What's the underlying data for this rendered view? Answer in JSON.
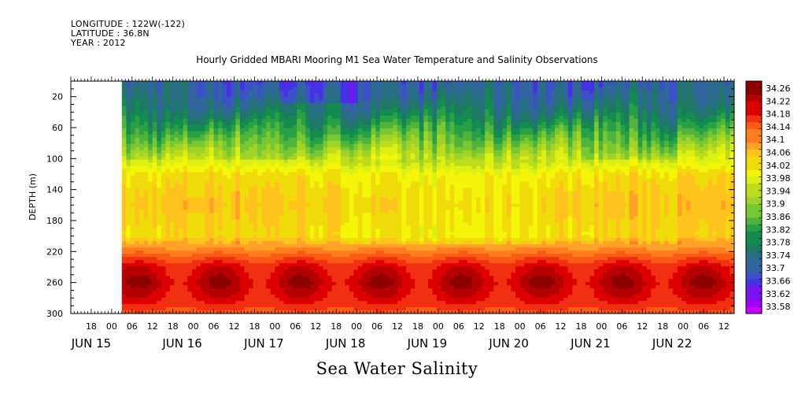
{
  "header": {
    "longitude": "LONGITUDE : 122W(-122)",
    "latitude": "LATITUDE : 36.8N",
    "year": "YEAR : 2012"
  },
  "chart_data": {
    "type": "heatmap",
    "title": "Hourly Gridded MBARI Mooring M1 Sea Water Temperature and Salinity Observations",
    "subtitle": "Sea Water Salinity",
    "ylabel": "DEPTH (m)",
    "xlabel": "",
    "x_range": [
      "2012-06-14 12:00",
      "2012-06-22 15:00"
    ],
    "data_start": "2012-06-15 03:00",
    "y_range": [
      0,
      300
    ],
    "y_direction": "down",
    "y_ticks": [
      20,
      60,
      100,
      140,
      180,
      220,
      260,
      300
    ],
    "x_hour_ticks": [
      "18",
      "00",
      "06",
      "12",
      "18",
      "00",
      "06",
      "12",
      "18",
      "00",
      "06",
      "12",
      "18",
      "00",
      "06",
      "12",
      "18",
      "00",
      "06",
      "12",
      "18",
      "00",
      "06",
      "12",
      "18",
      "00",
      "06",
      "12",
      "18",
      "00",
      "06",
      "12"
    ],
    "x_day_labels": [
      "JUN 15",
      "JUN 16",
      "JUN 17",
      "JUN 18",
      "JUN 19",
      "JUN 20",
      "JUN 21",
      "JUN 22"
    ],
    "colorbar": {
      "levels": [
        "34.26",
        "34.22",
        "34.18",
        "34.14",
        "34.1",
        "34.06",
        "34.02",
        "33.98",
        "33.94",
        "33.9",
        "33.86",
        "33.82",
        "33.78",
        "33.74",
        "33.7",
        "33.66",
        "33.62",
        "33.58"
      ],
      "colors": [
        "#8c0000",
        "#b40000",
        "#dc0000",
        "#f03010",
        "#fa5a14",
        "#ff7d1e",
        "#ffa028",
        "#ffc31e",
        "#f0dc0a",
        "#f5f50a",
        "#dcf014",
        "#bedc1e",
        "#a0d228",
        "#78c832",
        "#50b43c",
        "#28a046",
        "#148c50",
        "#1e7864",
        "#286e82",
        "#3264a0",
        "#3c50c8",
        "#4632e6",
        "#7814f0",
        "#a000fa",
        "#c800ff"
      ],
      "cells": 34
    },
    "profile": [
      {
        "depth": 0,
        "value": 33.72
      },
      {
        "depth": 20,
        "value": 33.74
      },
      {
        "depth": 40,
        "value": 33.78
      },
      {
        "depth": 60,
        "value": 33.84
      },
      {
        "depth": 80,
        "value": 33.9
      },
      {
        "depth": 100,
        "value": 33.96
      },
      {
        "depth": 120,
        "value": 34.03
      },
      {
        "depth": 140,
        "value": 34.05
      },
      {
        "depth": 160,
        "value": 34.06
      },
      {
        "depth": 180,
        "value": 34.05
      },
      {
        "depth": 200,
        "value": 34.04
      },
      {
        "depth": 220,
        "value": 34.14
      },
      {
        "depth": 240,
        "value": 34.22
      },
      {
        "depth": 260,
        "value": 34.25
      },
      {
        "depth": 280,
        "value": 34.22
      },
      {
        "depth": 300,
        "value": 34.17
      }
    ]
  }
}
